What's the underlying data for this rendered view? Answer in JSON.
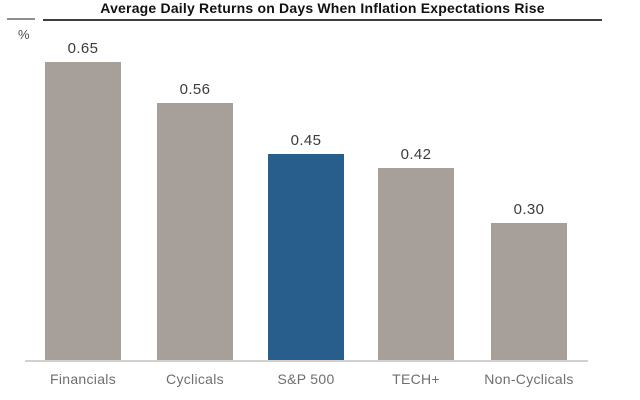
{
  "header": {
    "title": "Average Daily Returns on Days When Inflation Expectations Rise",
    "unit_label": "%"
  },
  "chart_data": {
    "type": "bar",
    "title": "Average Daily Returns on Days When Inflation Expectations Rise",
    "xlabel": "",
    "ylabel": "%",
    "ylim": [
      0,
      0.7
    ],
    "grid": false,
    "legend": "none",
    "categories": [
      "Financials",
      "Cyclicals",
      "S&P 500",
      "TECH+",
      "Non-Cyclicals"
    ],
    "values": [
      0.65,
      0.56,
      0.45,
      0.42,
      0.3
    ],
    "value_labels": [
      "0.65",
      "0.56",
      "0.45",
      "0.42",
      "0.30"
    ],
    "highlight_index": 2,
    "highlight_color": "#285e8c",
    "default_bar_color": "#a7a09a",
    "baseline_color": "#d2d0cd",
    "title_rule_color": "#3f3f3f"
  }
}
